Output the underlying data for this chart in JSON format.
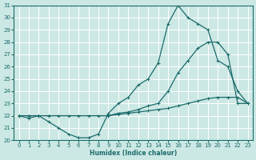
{
  "xlabel": "Humidex (Indice chaleur)",
  "xlim": [
    -0.5,
    23.5
  ],
  "ylim": [
    20,
    31
  ],
  "yticks": [
    20,
    21,
    22,
    23,
    24,
    25,
    26,
    27,
    28,
    29,
    30,
    31
  ],
  "xticks": [
    0,
    1,
    2,
    3,
    4,
    5,
    6,
    7,
    8,
    9,
    10,
    11,
    12,
    13,
    14,
    15,
    16,
    17,
    18,
    19,
    20,
    21,
    22,
    23
  ],
  "bg_color": "#cce8e4",
  "line_color": "#1a6b6b",
  "grid_color": "#b0d8d2",
  "line1_x": [
    0,
    1,
    2,
    3,
    4,
    5,
    6,
    7,
    8,
    9,
    10,
    11,
    12,
    13,
    14,
    15,
    16,
    17,
    18,
    19,
    20,
    21,
    22,
    23
  ],
  "line1_y": [
    22,
    21.8,
    22,
    21.5,
    21.0,
    20.5,
    20.2,
    20.2,
    20.5,
    22.2,
    23.0,
    23.5,
    24.5,
    25.0,
    26.3,
    29.5,
    31.0,
    30.0,
    29.5,
    29.0,
    26.5,
    26.0,
    24.0,
    23.0
  ],
  "line2_x": [
    0,
    1,
    2,
    3,
    4,
    5,
    6,
    7,
    8,
    9,
    10,
    11,
    12,
    13,
    14,
    15,
    16,
    17,
    18,
    19,
    20,
    21,
    22,
    23
  ],
  "line2_y": [
    22,
    22,
    22,
    22,
    22,
    22,
    22,
    22,
    22,
    22,
    22.2,
    22.3,
    22.5,
    22.8,
    23.0,
    24.0,
    25.5,
    26.5,
    27.5,
    28.0,
    28.0,
    27.0,
    23.0,
    23.0
  ],
  "line3_x": [
    0,
    1,
    2,
    3,
    9,
    10,
    11,
    12,
    13,
    14,
    15,
    16,
    17,
    18,
    19,
    20,
    21,
    22,
    23
  ],
  "line3_y": [
    22,
    22,
    22,
    22,
    22,
    22.1,
    22.2,
    22.3,
    22.4,
    22.5,
    22.6,
    22.8,
    23.0,
    23.2,
    23.4,
    23.5,
    23.5,
    23.5,
    23.0
  ]
}
